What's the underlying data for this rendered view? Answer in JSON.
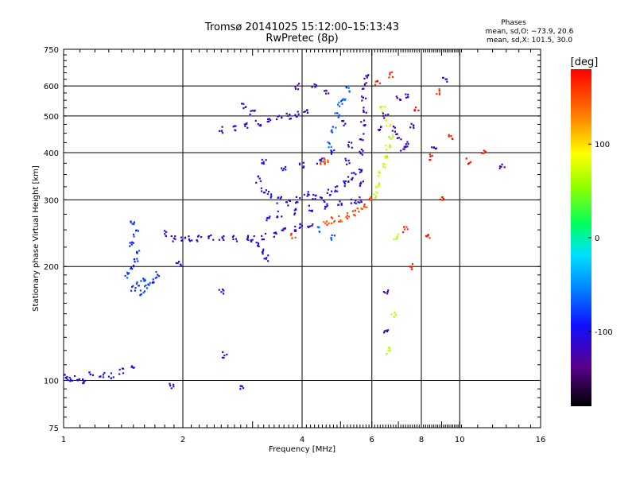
{
  "chart_data": {
    "type": "scatter",
    "title": "Tromsø 20141025 15:12:00–15:13:43",
    "subtitle": "RwPretec (8p)",
    "xlabel": "Frequency [MHz]",
    "ylabel": "Stationary phase Virtual Height [km]",
    "x_scale": "log",
    "y_scale": "log",
    "xlim": [
      1,
      16
    ],
    "ylim": [
      75,
      750
    ],
    "x_ticks": [
      1,
      2,
      4,
      6,
      8,
      10,
      16
    ],
    "y_ticks": [
      75,
      100,
      200,
      300,
      400,
      500,
      600,
      750
    ],
    "grid": true,
    "stats": {
      "heading": "Phases",
      "line1": "mean, sd,O: −73.9, 20.6",
      "line2": "mean, sd,X: 101.5, 30.0"
    },
    "colorbar": {
      "label": "[deg]",
      "range": [
        -180,
        180
      ],
      "ticks": [
        100,
        0,
        -100
      ],
      "colormap": "rainbow"
    },
    "series": [
      {
        "color_value": -100,
        "points": [
          [
            1.02,
            102
          ],
          [
            1.05,
            100
          ],
          [
            1.08,
            101
          ],
          [
            1.12,
            100
          ],
          [
            1.17,
            104
          ],
          [
            1.25,
            103
          ],
          [
            1.32,
            103
          ],
          [
            1.4,
            106
          ],
          [
            1.5,
            110
          ],
          [
            1.88,
            97
          ],
          [
            2.55,
            117
          ],
          [
            2.8,
            95
          ]
        ]
      },
      {
        "color_value": -80,
        "points": [
          [
            1.45,
            190
          ],
          [
            1.48,
            200
          ],
          [
            1.5,
            175
          ],
          [
            1.52,
            210
          ],
          [
            1.55,
            180
          ],
          [
            1.58,
            170
          ],
          [
            1.62,
            178
          ],
          [
            1.67,
            182
          ],
          [
            1.72,
            190
          ],
          [
            1.5,
            262
          ],
          [
            1.52,
            245
          ],
          [
            1.48,
            230
          ],
          [
            1.55,
            220
          ],
          [
            1.6,
            185
          ]
        ]
      },
      {
        "color_value": -110,
        "points": [
          [
            1.8,
            245
          ],
          [
            1.9,
            238
          ],
          [
            2.0,
            236
          ],
          [
            2.1,
            236
          ],
          [
            2.2,
            238
          ],
          [
            2.35,
            240
          ],
          [
            2.5,
            237
          ],
          [
            2.7,
            238
          ],
          [
            2.9,
            238
          ],
          [
            3.0,
            236
          ],
          [
            3.2,
            240
          ],
          [
            3.4,
            244
          ],
          [
            3.6,
            248
          ],
          [
            3.8,
            252
          ],
          [
            4.0,
            256
          ],
          [
            4.2,
            258
          ],
          [
            1.95,
            205
          ],
          [
            2.5,
            172
          ]
        ]
      },
      {
        "color_value": -115,
        "points": [
          [
            2.5,
            460
          ],
          [
            2.7,
            465
          ],
          [
            2.9,
            470
          ],
          [
            3.1,
            480
          ],
          [
            3.3,
            488
          ],
          [
            3.5,
            496
          ],
          [
            3.7,
            500
          ],
          [
            3.9,
            505
          ],
          [
            4.1,
            510
          ],
          [
            2.85,
            530
          ],
          [
            3.0,
            510
          ]
        ]
      },
      {
        "color_value": -100,
        "points": [
          [
            3.1,
            340
          ],
          [
            3.2,
            320
          ],
          [
            3.3,
            310
          ],
          [
            3.5,
            300
          ],
          [
            3.7,
            295
          ],
          [
            3.9,
            300
          ],
          [
            4.1,
            310
          ],
          [
            4.3,
            305
          ],
          [
            4.5,
            300
          ],
          [
            4.7,
            315
          ],
          [
            4.9,
            320
          ],
          [
            5.1,
            330
          ],
          [
            5.3,
            340
          ],
          [
            3.2,
            380
          ],
          [
            3.6,
            360
          ],
          [
            4.0,
            370
          ],
          [
            4.4,
            380
          ],
          [
            4.8,
            400
          ],
          [
            5.2,
            380
          ],
          [
            3.3,
            270
          ],
          [
            3.5,
            275
          ],
          [
            3.8,
            280
          ],
          [
            4.2,
            285
          ],
          [
            4.6,
            290
          ],
          [
            5.0,
            292
          ],
          [
            5.4,
            295
          ],
          [
            3.2,
            220
          ],
          [
            3.25,
            210
          ],
          [
            3.1,
            230
          ]
        ]
      },
      {
        "color_value": -120,
        "points": [
          [
            5.6,
            300
          ],
          [
            5.62,
            330
          ],
          [
            5.64,
            360
          ],
          [
            5.66,
            400
          ],
          [
            5.68,
            440
          ],
          [
            5.7,
            480
          ],
          [
            5.72,
            520
          ],
          [
            5.74,
            560
          ],
          [
            5.76,
            600
          ],
          [
            5.8,
            630
          ],
          [
            5.4,
            350
          ],
          [
            5.3,
            420
          ],
          [
            5.1,
            480
          ],
          [
            4.6,
            580
          ],
          [
            4.3,
            600
          ],
          [
            3.9,
            600
          ]
        ]
      },
      {
        "color_value": -70,
        "points": [
          [
            4.5,
            380
          ],
          [
            4.7,
            420
          ],
          [
            4.8,
            460
          ],
          [
            4.9,
            500
          ],
          [
            5.0,
            540
          ],
          [
            5.1,
            560
          ],
          [
            5.2,
            590
          ],
          [
            4.4,
            250
          ],
          [
            4.8,
            240
          ]
        ]
      },
      {
        "color_value": 150,
        "points": [
          [
            4.6,
            262
          ],
          [
            4.8,
            265
          ],
          [
            5.0,
            268
          ],
          [
            5.2,
            272
          ],
          [
            5.4,
            278
          ],
          [
            5.6,
            285
          ],
          [
            5.8,
            292
          ],
          [
            6.0,
            300
          ],
          [
            3.8,
            240
          ],
          [
            4.5,
            380
          ],
          [
            4.6,
            385
          ]
        ]
      },
      {
        "color_value": 70,
        "points": [
          [
            6.1,
            310
          ],
          [
            6.2,
            330
          ],
          [
            6.3,
            350
          ],
          [
            6.4,
            370
          ],
          [
            6.5,
            390
          ],
          [
            6.6,
            410
          ],
          [
            6.7,
            440
          ],
          [
            6.6,
            480
          ],
          [
            6.4,
            520
          ],
          [
            6.9,
            240
          ],
          [
            6.8,
            150
          ],
          [
            6.6,
            120
          ]
        ]
      },
      {
        "color_value": -120,
        "points": [
          [
            6.3,
            460
          ],
          [
            6.5,
            500
          ],
          [
            6.8,
            460
          ],
          [
            7.0,
            440
          ],
          [
            7.2,
            410
          ],
          [
            7.4,
            420
          ],
          [
            7.6,
            470
          ],
          [
            7.0,
            560
          ],
          [
            7.4,
            560
          ],
          [
            8.6,
            410
          ],
          [
            9.2,
            620
          ],
          [
            12.8,
            370
          ],
          [
            6.5,
            170
          ],
          [
            6.5,
            135
          ]
        ]
      },
      {
        "color_value": 170,
        "points": [
          [
            6.2,
            610
          ],
          [
            6.7,
            640
          ],
          [
            7.3,
            250
          ],
          [
            7.5,
            200
          ],
          [
            8.3,
            240
          ],
          [
            8.5,
            390
          ],
          [
            9.0,
            300
          ],
          [
            9.5,
            440
          ],
          [
            10.5,
            380
          ],
          [
            11.5,
            400
          ],
          [
            8.8,
            580
          ],
          [
            7.8,
            520
          ]
        ]
      }
    ]
  }
}
